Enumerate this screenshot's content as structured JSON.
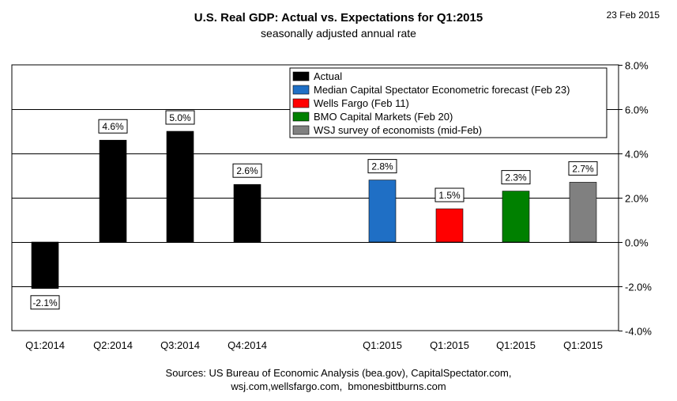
{
  "header": {
    "title": "U.S. Real GDP: Actual vs. Expectations for Q1:2015",
    "subtitle": "seasonally adjusted annual rate",
    "date": "23 Feb 2015"
  },
  "footer": {
    "line1": "Sources: US Bureau of Economic Analysis (bea.gov), CapitalSpectator.com,",
    "line2": "wsj.com,wellsfargo.com,  bmonesbittburns.com"
  },
  "chart_data": {
    "type": "bar",
    "title": "U.S. Real GDP: Actual vs. Expectations for Q1:2015",
    "subtitle": "seasonally adjusted annual rate",
    "ylim": [
      -4,
      8
    ],
    "yticks": [
      -4,
      -2,
      0,
      2,
      4,
      6,
      8
    ],
    "ytick_labels": [
      "-4.0%",
      "-2.0%",
      "0.0%",
      "2.0%",
      "4.0%",
      "6.0%",
      "8.0%"
    ],
    "grid": true,
    "legend_position": "top-right",
    "legend": [
      {
        "label": "Actual",
        "color": "#000000"
      },
      {
        "label": "Median  Capital Spectator Econometric forecast (Feb 23)",
        "color": "#1f6fc5"
      },
      {
        "label": "Wells Fargo (Feb 11)",
        "color": "#ff0000"
      },
      {
        "label": "BMO Capital Markets (Feb 20)",
        "color": "#008000"
      },
      {
        "label": "WSJ survey of economists (mid-Feb)",
        "color": "#808080"
      }
    ],
    "categories": [
      "Q1:2014",
      "Q2:2014",
      "Q3:2014",
      "Q4:2014",
      "Q1:2015",
      "Q1:2015",
      "Q1:2015",
      "Q1:2015"
    ],
    "values": [
      -2.1,
      4.6,
      5.0,
      2.6,
      2.8,
      1.5,
      2.3,
      2.7
    ],
    "value_labels": [
      "-2.1%",
      "4.6%",
      "5.0%",
      "2.6%",
      "2.8%",
      "1.5%",
      "2.3%",
      "2.7%"
    ],
    "bar_colors": [
      "#000000",
      "#000000",
      "#000000",
      "#000000",
      "#1f6fc5",
      "#ff0000",
      "#008000",
      "#808080"
    ]
  }
}
